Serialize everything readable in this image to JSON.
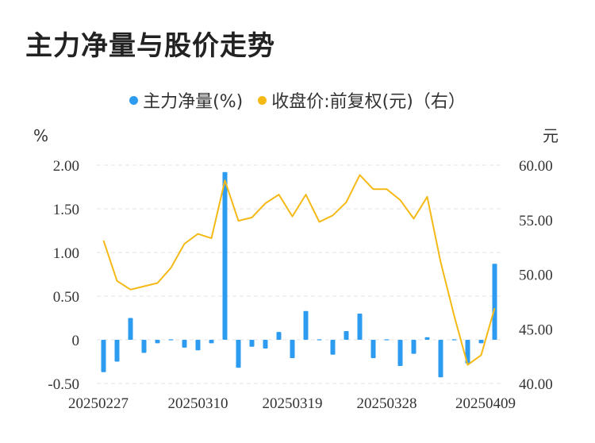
{
  "title": "主力净量与股价走势",
  "chart_data": {
    "type": "bar+line",
    "left_unit": "%",
    "right_unit": "元",
    "left_ticks": [
      "2.00",
      "1.50",
      "1.00",
      "0.50",
      "0",
      "-0.50"
    ],
    "left_range": [
      -0.5,
      2.0
    ],
    "right_ticks": [
      "60.00",
      "55.00",
      "50.00",
      "45.00",
      "40.00"
    ],
    "right_range": [
      40.0,
      60.0
    ],
    "x_labels": [
      "20250227",
      "20250310",
      "20250319",
      "20250328",
      "20250409"
    ],
    "series": [
      {
        "name": "主力净量(%)",
        "type": "bar",
        "color": "#2d9cf0",
        "values": [
          -0.37,
          -0.25,
          0.25,
          -0.15,
          -0.04,
          0.005,
          -0.09,
          -0.12,
          -0.04,
          1.92,
          -0.32,
          -0.08,
          -0.1,
          0.09,
          -0.21,
          0.33,
          0.01,
          -0.17,
          0.1,
          0.3,
          -0.21,
          -0.005,
          -0.3,
          -0.16,
          0.03,
          -0.43,
          -0.005,
          -0.27,
          -0.04,
          0.87
        ]
      },
      {
        "name": "收盘价:前复权(元)（右）",
        "type": "line",
        "color": "#f5b916",
        "values": [
          53.1,
          49.4,
          48.6,
          48.9,
          49.2,
          50.6,
          52.8,
          53.7,
          53.3,
          58.6,
          54.9,
          55.2,
          56.5,
          57.3,
          55.3,
          57.3,
          54.8,
          55.4,
          56.6,
          59.1,
          57.8,
          57.8,
          56.8,
          55.1,
          57.1,
          51.1,
          46.2,
          41.7,
          42.6,
          46.9
        ]
      }
    ]
  }
}
